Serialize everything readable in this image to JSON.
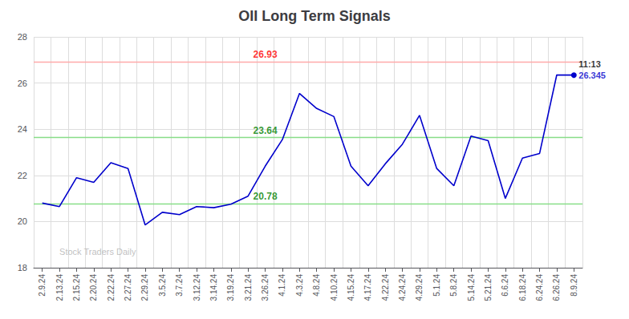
{
  "chart_data": {
    "type": "line",
    "title": "OII Long Term Signals",
    "categories": [
      "2.9.24",
      "2.13.24",
      "2.15.24",
      "2.20.24",
      "2.22.24",
      "2.27.24",
      "2.29.24",
      "3.5.24",
      "3.7.24",
      "3.12.24",
      "3.14.24",
      "3.19.24",
      "3.21.24",
      "3.26.24",
      "4.1.24",
      "4.3.24",
      "4.8.24",
      "4.10.24",
      "4.15.24",
      "4.17.24",
      "4.22.24",
      "4.24.24",
      "4.29.24",
      "5.1.24",
      "5.8.24",
      "5.14.24",
      "5.21.24",
      "6.6.24",
      "6.18.24",
      "6.24.24",
      "6.26.24",
      "8.9.24"
    ],
    "values": [
      20.8,
      20.65,
      21.9,
      21.7,
      22.55,
      22.3,
      19.85,
      20.4,
      20.3,
      20.65,
      20.6,
      20.75,
      21.1,
      22.4,
      23.55,
      25.55,
      24.9,
      24.55,
      22.4,
      21.55,
      22.5,
      23.35,
      24.6,
      22.3,
      21.55,
      23.7,
      23.5,
      21.0,
      22.75,
      22.95,
      26.35,
      26.345
    ],
    "color": "#0000cc",
    "ylim": [
      18,
      28
    ],
    "yticks": [
      18,
      20,
      22,
      24,
      26,
      28
    ],
    "grid": true,
    "hlines": [
      {
        "value": 26.93,
        "label": "26.93",
        "color": "#ffaaaa",
        "label_color": "red",
        "label_at": "3.26.24"
      },
      {
        "value": 23.64,
        "label": "23.64",
        "color": "#88dd88",
        "label_color": "green",
        "label_at": "3.26.24"
      },
      {
        "value": 20.78,
        "label": "20.78",
        "color": "#88dd88",
        "label_color": "green",
        "label_at": "3.26.24"
      }
    ],
    "annotations": [
      {
        "text": "11:13",
        "x": "8.9.24",
        "y": 26.345,
        "color": "#000000"
      },
      {
        "text": "26.345",
        "x": "8.9.24",
        "y": 26.345,
        "color": "#0000cc"
      }
    ],
    "watermark": {
      "text": "Stock Traders Daily",
      "x": "2.13.24",
      "y": 18.7,
      "color": "#b0b0b0"
    }
  }
}
